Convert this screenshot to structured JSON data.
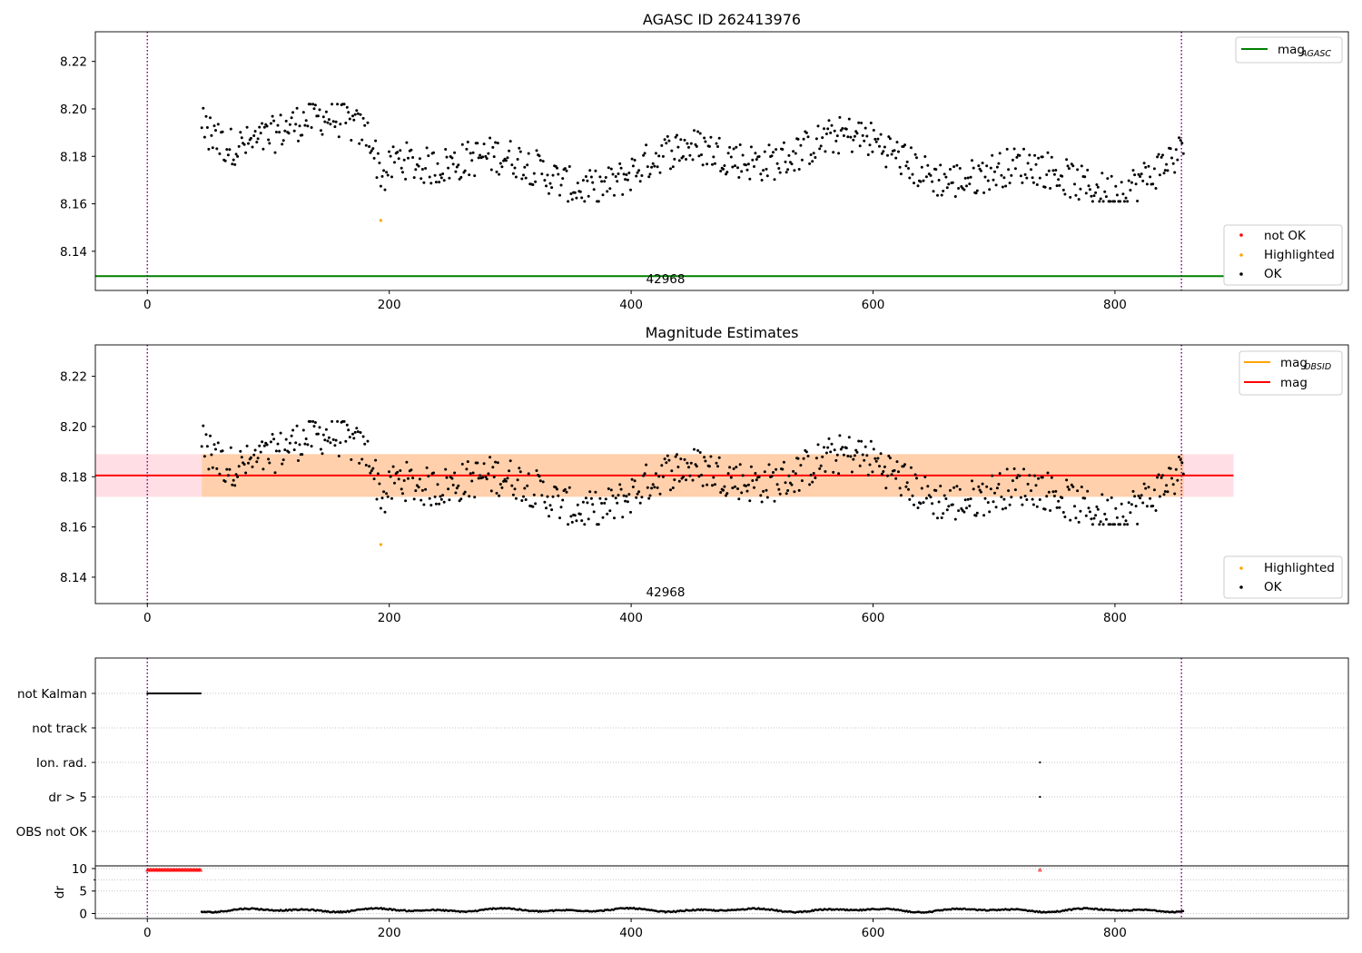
{
  "chart_data": [
    {
      "type": "scatter",
      "title": "AGASC ID 262413976",
      "xlim": [
        -43,
        993
      ],
      "ylim": [
        8.1235,
        8.2325
      ],
      "xticks": [
        "0",
        "200",
        "400",
        "600",
        "800"
      ],
      "yticks": [
        "8.14",
        "8.16",
        "8.18",
        "8.20",
        "8.22"
      ],
      "annotation": "42968",
      "vlines": [
        0,
        855
      ],
      "hlines": [
        {
          "name": "mag_AGASC",
          "y": 8.1295,
          "color": "#008000"
        }
      ],
      "legend_upper": [
        {
          "name": "mag",
          "subscript": "AGASC",
          "color": "#008000",
          "kind": "line"
        }
      ],
      "legend_lower": [
        {
          "name": "not OK",
          "color": "#ff0000",
          "kind": "dot"
        },
        {
          "name": "Highlighted",
          "color": "#ffa500",
          "kind": "dot"
        },
        {
          "name": "OK",
          "color": "#000000",
          "kind": "dot"
        }
      ],
      "series": [
        {
          "name": "OK",
          "color": "#000000",
          "x_range": [
            45,
            857
          ],
          "y_range": [
            8.161,
            8.202
          ]
        },
        {
          "name": "Highlighted",
          "color": "#ffa500",
          "points": [
            [
              193,
              8.153
            ]
          ]
        }
      ]
    },
    {
      "type": "scatter",
      "title": "Magnitude Estimates",
      "xlim": [
        -43,
        993
      ],
      "ylim": [
        8.1295,
        8.2325
      ],
      "xticks": [
        "0",
        "200",
        "400",
        "600",
        "800"
      ],
      "yticks": [
        "8.14",
        "8.16",
        "8.18",
        "8.20",
        "8.22"
      ],
      "annotation": "42968",
      "vlines": [
        0,
        855
      ],
      "hlines": [
        {
          "name": "mag",
          "y": 8.1805,
          "color": "#ff0000"
        }
      ],
      "bands": [
        {
          "y": [
            8.172,
            8.189
          ],
          "x": [
            -43,
            898
          ],
          "color": "#ffc0cb",
          "opacity": 0.5
        },
        {
          "y": [
            8.172,
            8.189
          ],
          "x": [
            45,
            857
          ],
          "color": "#ffa500",
          "opacity": 0.25
        }
      ],
      "legend_upper": [
        {
          "name": "mag",
          "subscript": "OBSID",
          "color": "#ffa500",
          "kind": "line"
        },
        {
          "name": "mag",
          "subscript": "",
          "color": "#ff0000",
          "kind": "line"
        }
      ],
      "legend_lower": [
        {
          "name": "Highlighted",
          "color": "#ffa500",
          "kind": "dot"
        },
        {
          "name": "OK",
          "color": "#000000",
          "kind": "dot"
        }
      ],
      "series": [
        {
          "name": "OK",
          "color": "#000000",
          "x_range": [
            45,
            857
          ],
          "y_range": [
            8.161,
            8.202
          ]
        },
        {
          "name": "Highlighted",
          "color": "#ffa500",
          "points": [
            [
              193,
              8.153
            ]
          ]
        }
      ]
    },
    {
      "type": "scatter",
      "title": "",
      "xlim": [
        -43,
        993
      ],
      "xticks": [
        "0",
        "200",
        "400",
        "600",
        "800"
      ],
      "vlines": [
        0,
        855
      ],
      "flags": [
        {
          "label": "not Kalman",
          "x_range": [
            0,
            45
          ]
        },
        {
          "label": "not track",
          "x_range": null
        },
        {
          "label": "Ion. rad.",
          "points": [
            738
          ]
        },
        {
          "label": "dr > 5",
          "points": [
            738
          ]
        },
        {
          "label": "OBS not OK",
          "x_range": null
        }
      ],
      "dr": {
        "ylabel": "dr",
        "yticks": [
          "0",
          "5",
          "10"
        ],
        "ylim": [
          -0.5,
          10.6
        ],
        "clipped_value": 9.7,
        "clipped_color": "#ff0000",
        "clipped_x_range": [
          0,
          45
        ],
        "clipped_points": [
          738
        ],
        "x_range": [
          45,
          857
        ],
        "y_range": [
          0.2,
          1.4
        ]
      }
    }
  ]
}
